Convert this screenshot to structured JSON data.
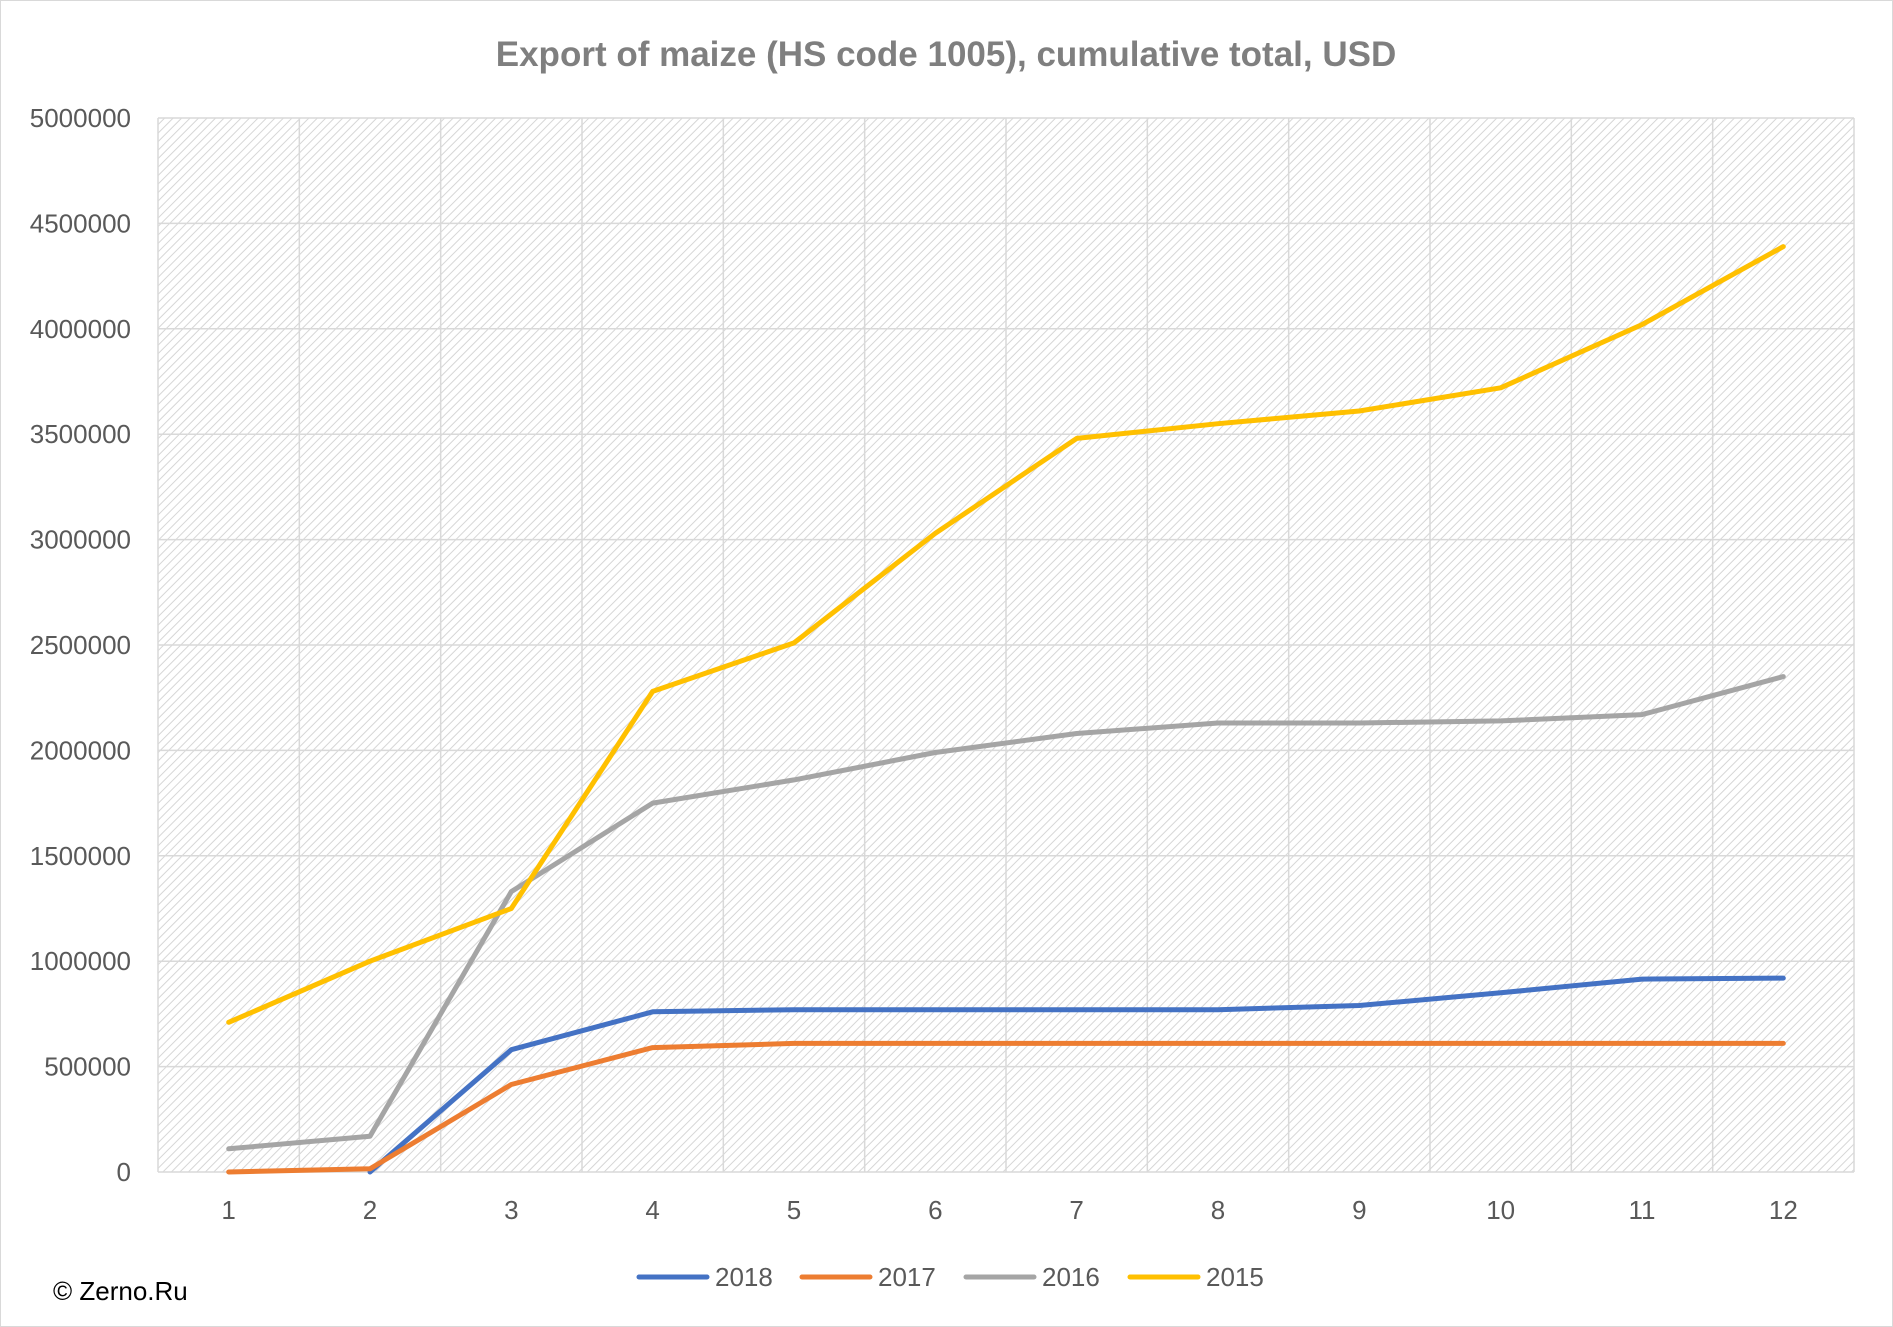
{
  "chart_data": {
    "type": "line",
    "title": "Export of maize (HS code 1005), cumulative total, USD",
    "xlabel": "",
    "ylabel": "",
    "categories": [
      "1",
      "2",
      "3",
      "4",
      "5",
      "6",
      "7",
      "8",
      "9",
      "10",
      "11",
      "12"
    ],
    "ylim": [
      0,
      5000000
    ],
    "yticks": [
      "0",
      "500000",
      "1000000",
      "1500000",
      "2000000",
      "2500000",
      "3000000",
      "3500000",
      "4000000",
      "4500000",
      "5000000"
    ],
    "grid": true,
    "legend_position": "bottom",
    "series": [
      {
        "name": "2018",
        "color": "#4472c4",
        "values": [
          null,
          0,
          580000,
          760000,
          770000,
          770000,
          770000,
          770000,
          790000,
          850000,
          915000,
          920000
        ]
      },
      {
        "name": "2017",
        "color": "#ed7d31",
        "values": [
          0,
          15000,
          415000,
          590000,
          610000,
          610000,
          610000,
          610000,
          610000,
          610000,
          610000,
          610000
        ]
      },
      {
        "name": "2016",
        "color": "#a5a5a5",
        "values": [
          110000,
          170000,
          1330000,
          1750000,
          1860000,
          1990000,
          2080000,
          2130000,
          2130000,
          2140000,
          2170000,
          2350000
        ]
      },
      {
        "name": "2015",
        "color": "#ffc000",
        "values": [
          710000,
          1000000,
          1250000,
          2280000,
          2510000,
          3030000,
          3480000,
          3550000,
          3610000,
          3720000,
          4020000,
          4390000
        ]
      }
    ]
  },
  "footer": {
    "copyright": "© Zerno.Ru"
  }
}
